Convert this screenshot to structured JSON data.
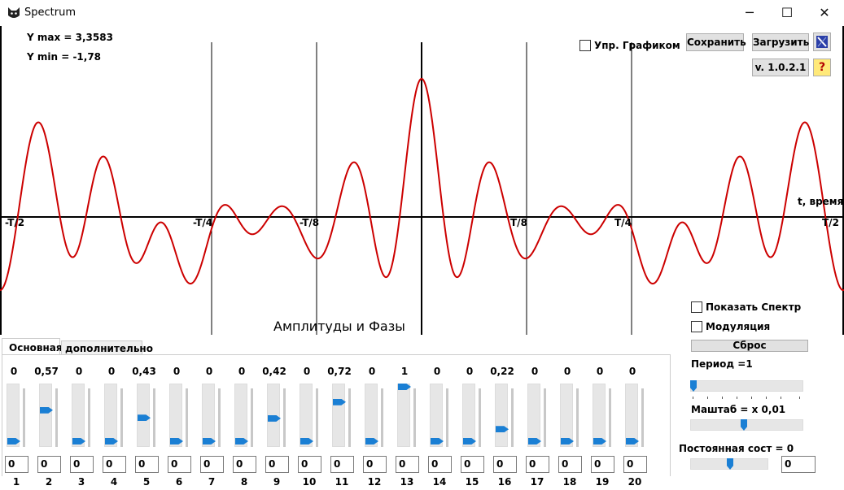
{
  "window": {
    "title": "Spectrum"
  },
  "info": {
    "ymax": "Y max = 3,3583",
    "ymin": "Y min = -1,78"
  },
  "graph_control_label": "Упр. Графиком",
  "buttons": {
    "save": "Сохранить",
    "load": "Загрузить",
    "version": "v. 1.0.2.1",
    "help": "?",
    "reset": "Сброс"
  },
  "chart_data": {
    "type": "line",
    "x_ticks": [
      "-T/2",
      "-T/4",
      "-T/8",
      "T/8",
      "T/4",
      "T/2"
    ],
    "xlabel": "t, время",
    "ylim": [
      -1.78,
      3.3583
    ],
    "series": [
      {
        "color": "#cc0000"
      }
    ]
  },
  "graph_title": "Амплитуды и Фазы",
  "tabs": [
    "Основная",
    "дополнительно"
  ],
  "harmonics": [
    {
      "index": "1",
      "amp": "0",
      "level": 0,
      "phase": "0"
    },
    {
      "index": "2",
      "amp": "0,57",
      "level": 0.57,
      "phase": "0"
    },
    {
      "index": "3",
      "amp": "0",
      "level": 0,
      "phase": "0"
    },
    {
      "index": "4",
      "amp": "0",
      "level": 0,
      "phase": "0"
    },
    {
      "index": "5",
      "amp": "0,43",
      "level": 0.43,
      "phase": "0"
    },
    {
      "index": "6",
      "amp": "0",
      "level": 0,
      "phase": "0"
    },
    {
      "index": "7",
      "amp": "0",
      "level": 0,
      "phase": "0"
    },
    {
      "index": "8",
      "amp": "0",
      "level": 0,
      "phase": "0"
    },
    {
      "index": "9",
      "amp": "0,42",
      "level": 0.42,
      "phase": "0"
    },
    {
      "index": "10",
      "amp": "0",
      "level": 0,
      "phase": "0"
    },
    {
      "index": "11",
      "amp": "0,72",
      "level": 0.72,
      "phase": "0"
    },
    {
      "index": "12",
      "amp": "0",
      "level": 0,
      "phase": "0"
    },
    {
      "index": "13",
      "amp": "1",
      "level": 1,
      "phase": "0"
    },
    {
      "index": "14",
      "amp": "0",
      "level": 0,
      "phase": "0"
    },
    {
      "index": "15",
      "amp": "0",
      "level": 0,
      "phase": "0"
    },
    {
      "index": "16",
      "amp": "0,22",
      "level": 0.22,
      "phase": "0"
    },
    {
      "index": "17",
      "amp": "0",
      "level": 0,
      "phase": "0"
    },
    {
      "index": "18",
      "amp": "0",
      "level": 0,
      "phase": "0"
    },
    {
      "index": "19",
      "amp": "0",
      "level": 0,
      "phase": "0"
    },
    {
      "index": "20",
      "amp": "0",
      "level": 0,
      "phase": "0"
    }
  ],
  "right_panel": {
    "show_spectrum": "Показать Спектр",
    "modulation": "Модуляция",
    "period_label": "Период =1",
    "scale_label": "Маштаб = x 0,01",
    "constant_label": "Постоянная сост =  0",
    "constant_value": "0"
  }
}
